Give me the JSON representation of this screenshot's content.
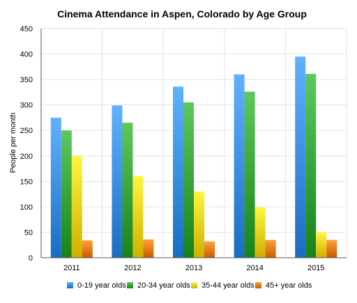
{
  "chart_data": {
    "type": "bar",
    "title": "Cinema Attendance in Aspen, Colorado by Age Group",
    "xlabel": "",
    "ylabel": "People per month",
    "categories": [
      "2011",
      "2012",
      "2013",
      "2014",
      "2015"
    ],
    "ylim": [
      0,
      450
    ],
    "yticks": [
      0,
      50,
      100,
      150,
      200,
      250,
      300,
      350,
      400,
      450
    ],
    "grid": true,
    "legend_position": "bottom",
    "series": [
      {
        "name": "0-19 year olds",
        "color": "#3d8fe6",
        "values": [
          275,
          299,
          336,
          360,
          395
        ]
      },
      {
        "name": "20-34 year olds",
        "color": "#3aa53a",
        "values": [
          250,
          265,
          305,
          326,
          361
        ]
      },
      {
        "name": "35-44 year olds",
        "color": "#f2d21c",
        "values": [
          200,
          160,
          130,
          99,
          50
        ]
      },
      {
        "name": "45+ year olds",
        "color": "#ec7d16",
        "values": [
          34,
          36,
          32,
          35,
          35
        ]
      }
    ]
  }
}
